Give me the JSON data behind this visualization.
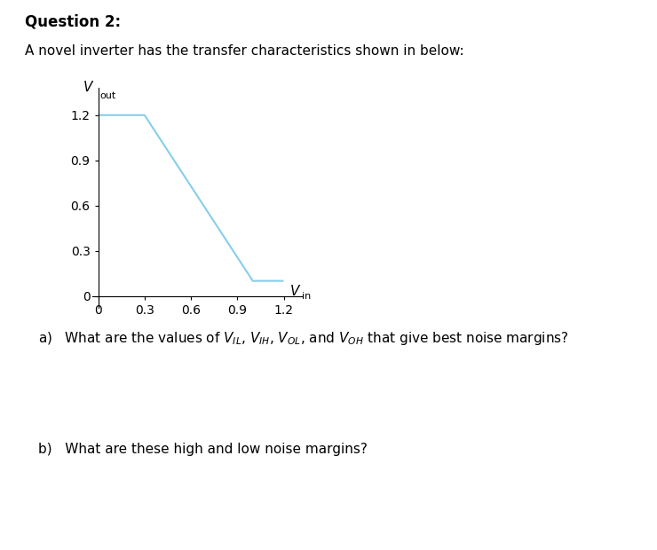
{
  "title": "Question 2:",
  "description": "A novel inverter has the transfer characteristics shown in below:",
  "question_a": "a)   What are the values of $V_{IL}$, $V_{IH}$, $V_{OL}$, and $V_{OH}$ that give best noise margins?",
  "question_b": "b)   What are these high and low noise margins?",
  "curve_x": [
    0,
    0.3,
    1.0,
    1.2
  ],
  "curve_y": [
    1.2,
    1.2,
    0.1,
    0.1
  ],
  "curve_color": "#87CEEB",
  "xticks": [
    0,
    0.3,
    0.6,
    0.9,
    1.2
  ],
  "yticks": [
    0,
    0.3,
    0.6,
    0.9,
    1.2
  ],
  "xlim": [
    -0.04,
    1.32
  ],
  "ylim": [
    -0.08,
    1.38
  ],
  "background_color": "#ffffff",
  "figsize": [
    7.4,
    6.2
  ],
  "dpi": 100
}
